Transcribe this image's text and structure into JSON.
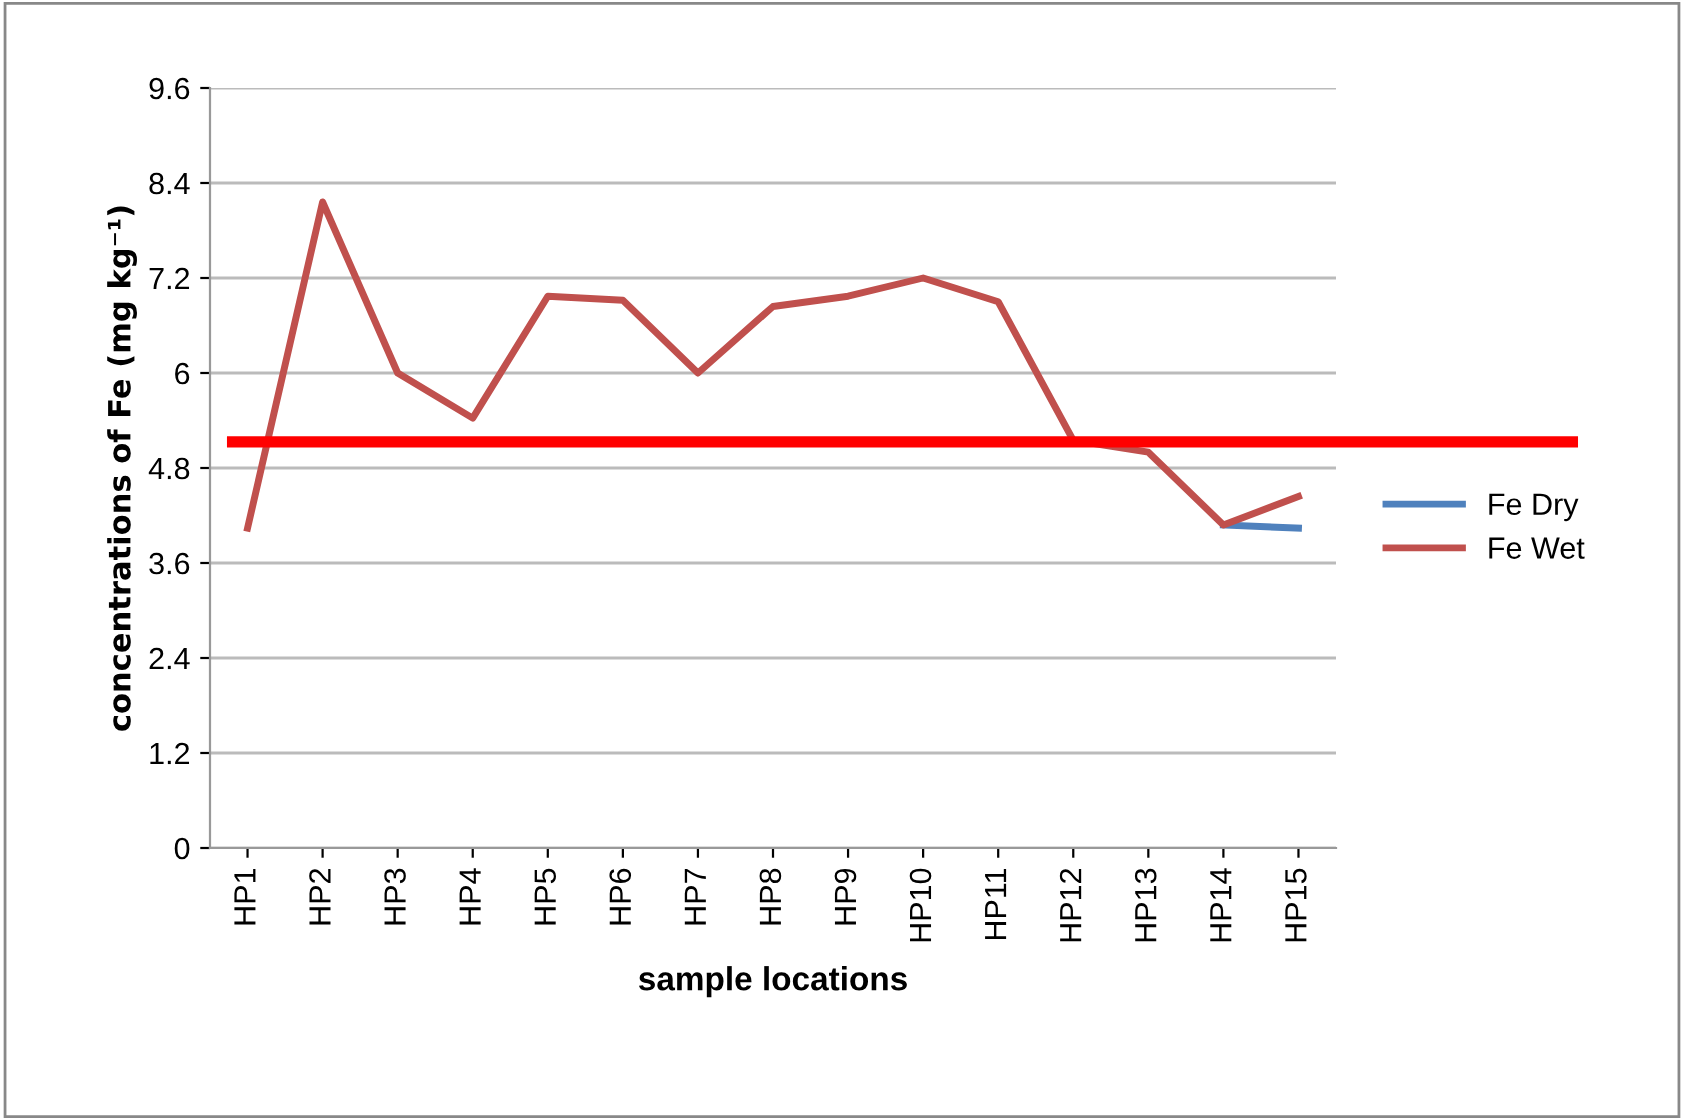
{
  "chart_data": {
    "type": "line",
    "xlabel": "sample locations",
    "ylabel": "concentrations of Fe (mg kg⁻¹)",
    "categories": [
      "HP1",
      "HP2",
      "HP3",
      "HP4",
      "HP5",
      "HP6",
      "HP7",
      "HP8",
      "HP9",
      "HP10",
      "HP11",
      "HP12",
      "HP13",
      "HP14",
      "HP15"
    ],
    "series": [
      {
        "name": "Fe Dry",
        "color": "#4f81bd",
        "values": [
          null,
          null,
          null,
          null,
          null,
          null,
          null,
          null,
          null,
          null,
          null,
          null,
          null,
          4.08,
          4.04
        ]
      },
      {
        "name": "Fe Wet",
        "color": "#c0504d",
        "values": [
          4.04,
          8.16,
          6.0,
          5.43,
          6.97,
          6.92,
          6.0,
          6.84,
          6.97,
          7.2,
          6.9,
          5.15,
          5.0,
          4.08,
          4.44
        ]
      }
    ],
    "ref_lines": [
      {
        "axis": "y",
        "value": 5.13,
        "color": "#ff0000"
      }
    ],
    "ylim": [
      0,
      9.6
    ],
    "yticks": [
      0,
      1.2,
      2.4,
      3.6,
      4.8,
      6,
      7.2,
      8.4,
      9.6
    ],
    "grid": "y",
    "legend": "right",
    "marker": "none",
    "line_style": "solid"
  }
}
